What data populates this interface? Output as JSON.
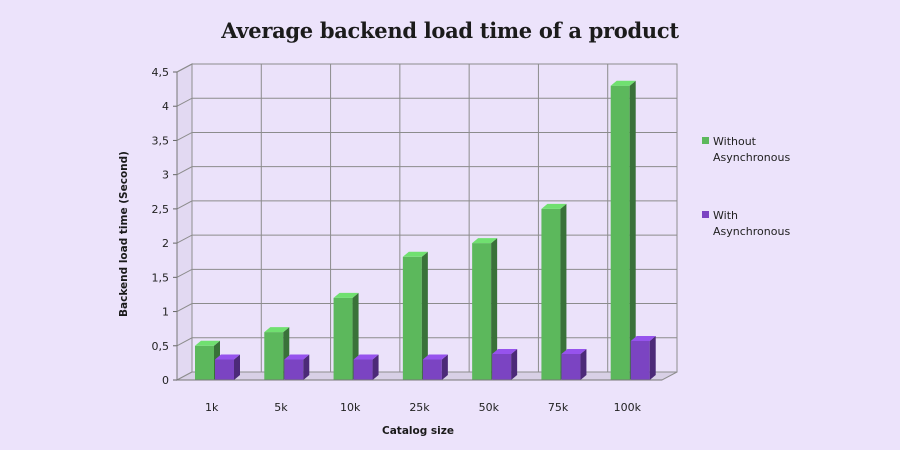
{
  "chart_data": {
    "type": "bar",
    "title": "Average backend load time of a product",
    "xlabel": "Catalog size",
    "ylabel": "Backend load time (Second)",
    "categories": [
      "1k",
      "5k",
      "10k",
      "25k",
      "50k",
      "75k",
      "100k"
    ],
    "ylim": [
      0,
      4.5
    ],
    "yticks": [
      "0",
      "0,5",
      "1",
      "1,5",
      "2",
      "2,5",
      "3",
      "3,5",
      "4",
      "4,5"
    ],
    "grid": true,
    "legend_position": "right",
    "series": [
      {
        "name": "Without Asynchronous",
        "legend_lines": [
          "Without",
          "Asynchronous"
        ],
        "color": "#5cb85c",
        "values": [
          0.5,
          0.7,
          1.2,
          1.8,
          2.0,
          2.5,
          4.3
        ]
      },
      {
        "name": "With Asynchronous",
        "legend_lines": [
          "With",
          "Asynchronous"
        ],
        "color": "#7b44c2",
        "values": [
          0.3,
          0.3,
          0.3,
          0.3,
          0.38,
          0.38,
          0.57
        ]
      }
    ]
  }
}
